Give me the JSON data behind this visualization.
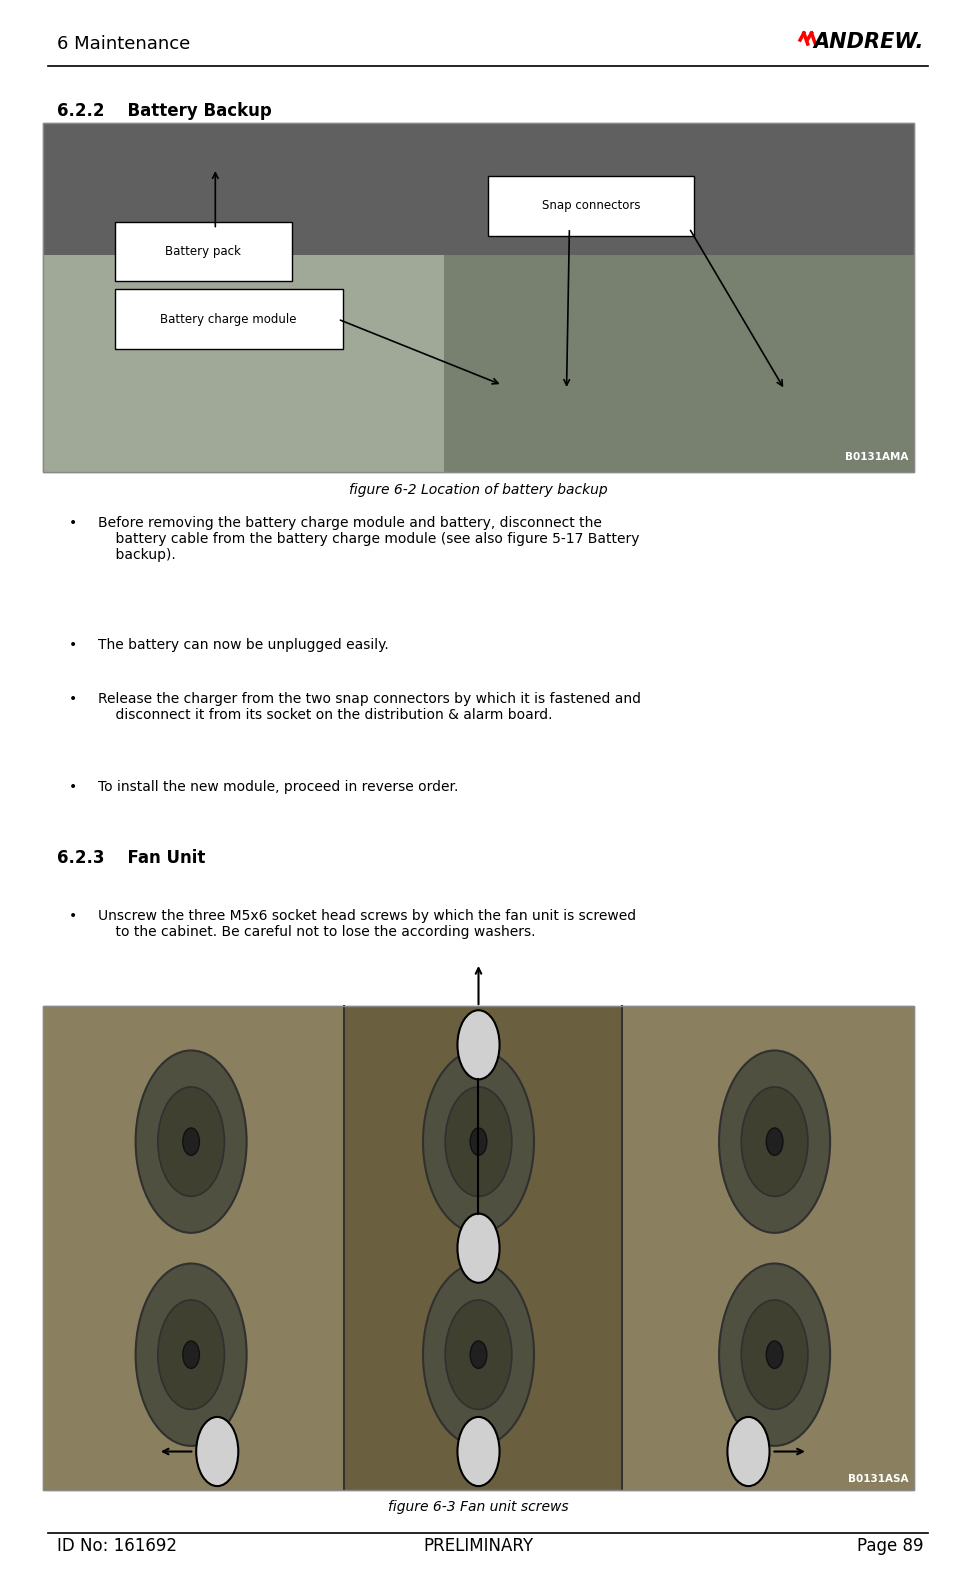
{
  "page_width": 9.57,
  "page_height": 15.72,
  "bg_color": "#ffffff",
  "header_text": "6 Maintenance",
  "header_fontsize": 13,
  "footer_text_left": "ID No: 161692",
  "footer_text_center": "PRELIMINARY",
  "footer_text_right": "Page 89",
  "footer_fontsize": 12,
  "section_622_title": "6.2.2    Battery Backup",
  "section_623_title": "6.2.3    Fan Unit",
  "fig62_caption": "figure 6-2 Location of battery backup",
  "fig63_caption": "figure 6-3 Fan unit screws",
  "label_battery_pack": "Battery pack",
  "label_battery_charge": "Battery charge module",
  "label_snap_connectors": "Snap connectors",
  "bullet_622": [
    "Before removing the battery charge module and battery, disconnect the\n    battery cable from the battery charge module (see also figure 5-17 Battery\n    backup).",
    "The battery can now be unplugged easily.",
    "Release the charger from the two snap connectors by which it is fastened and\n    disconnect it from its socket on the distribution & alarm board.",
    "To install the new module, proceed in reverse order."
  ],
  "bullet_623": [
    "Unscrew the three M5x6 socket head screws by which the fan unit is screwed\n    to the cabinet. Be careful not to lose the according washers."
  ]
}
